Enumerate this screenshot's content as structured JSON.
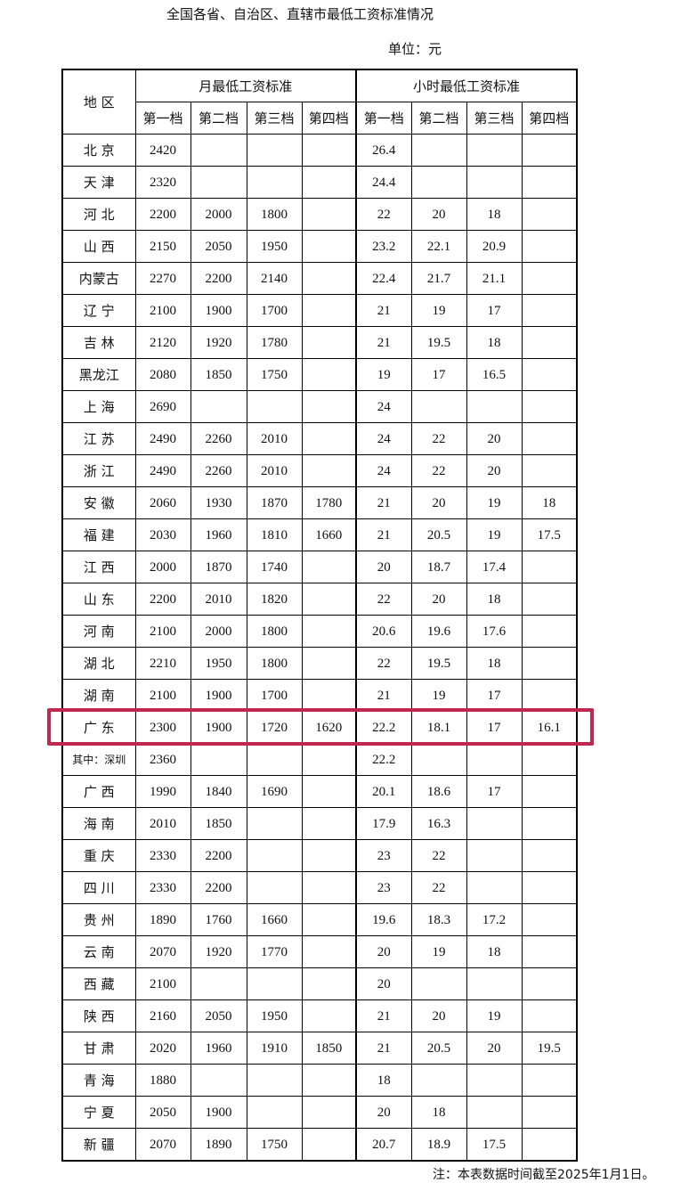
{
  "title": "全国各省、自治区、直辖市最低工资标准情况",
  "unit": "单位：元",
  "headers": {
    "region": "地 区",
    "monthly": "月最低工资标准",
    "hourly": "小时最低工资标准",
    "tiers": [
      "第一档",
      "第二档",
      "第三档",
      "第四档"
    ]
  },
  "highlight_color": "#c0284f",
  "highlighted_region": "广 东",
  "rows": [
    [
      "北 京",
      "2420",
      "",
      "",
      "",
      "26.4",
      "",
      "",
      ""
    ],
    [
      "天 津",
      "2320",
      "",
      "",
      "",
      "24.4",
      "",
      "",
      ""
    ],
    [
      "河 北",
      "2200",
      "2000",
      "1800",
      "",
      "22",
      "20",
      "18",
      ""
    ],
    [
      "山 西",
      "2150",
      "2050",
      "1950",
      "",
      "23.2",
      "22.1",
      "20.9",
      ""
    ],
    [
      "内蒙古",
      "2270",
      "2200",
      "2140",
      "",
      "22.4",
      "21.7",
      "21.1",
      ""
    ],
    [
      "辽 宁",
      "2100",
      "1900",
      "1700",
      "",
      "21",
      "19",
      "17",
      ""
    ],
    [
      "吉 林",
      "2120",
      "1920",
      "1780",
      "",
      "21",
      "19.5",
      "18",
      ""
    ],
    [
      "黑龙江",
      "2080",
      "1850",
      "1750",
      "",
      "19",
      "17",
      "16.5",
      ""
    ],
    [
      "上 海",
      "2690",
      "",
      "",
      "",
      "24",
      "",
      "",
      ""
    ],
    [
      "江 苏",
      "2490",
      "2260",
      "2010",
      "",
      "24",
      "22",
      "20",
      ""
    ],
    [
      "浙 江",
      "2490",
      "2260",
      "2010",
      "",
      "24",
      "22",
      "20",
      ""
    ],
    [
      "安 徽",
      "2060",
      "1930",
      "1870",
      "1780",
      "21",
      "20",
      "19",
      "18"
    ],
    [
      "福 建",
      "2030",
      "1960",
      "1810",
      "1660",
      "21",
      "20.5",
      "19",
      "17.5"
    ],
    [
      "江 西",
      "2000",
      "1870",
      "1740",
      "",
      "20",
      "18.7",
      "17.4",
      ""
    ],
    [
      "山 东",
      "2200",
      "2010",
      "1820",
      "",
      "22",
      "20",
      "18",
      ""
    ],
    [
      "河 南",
      "2100",
      "2000",
      "1800",
      "",
      "20.6",
      "19.6",
      "17.6",
      ""
    ],
    [
      "湖 北",
      "2210",
      "1950",
      "1800",
      "",
      "22",
      "19.5",
      "18",
      ""
    ],
    [
      "湖 南",
      "2100",
      "1900",
      "1700",
      "",
      "21",
      "19",
      "17",
      ""
    ],
    [
      "广 东",
      "2300",
      "1900",
      "1720",
      "1620",
      "22.2",
      "18.1",
      "17",
      "16.1"
    ],
    [
      "其中：深圳",
      "2360",
      "",
      "",
      "",
      "22.2",
      "",
      "",
      ""
    ],
    [
      "广 西",
      "1990",
      "1840",
      "1690",
      "",
      "20.1",
      "18.6",
      "17",
      ""
    ],
    [
      "海 南",
      "2010",
      "1850",
      "",
      "",
      "17.9",
      "16.3",
      "",
      ""
    ],
    [
      "重 庆",
      "2330",
      "2200",
      "",
      "",
      "23",
      "22",
      "",
      ""
    ],
    [
      "四 川",
      "2330",
      "2200",
      "",
      "",
      "23",
      "22",
      "",
      ""
    ],
    [
      "贵 州",
      "1890",
      "1760",
      "1660",
      "",
      "19.6",
      "18.3",
      "17.2",
      ""
    ],
    [
      "云 南",
      "2070",
      "1920",
      "1770",
      "",
      "20",
      "19",
      "18",
      ""
    ],
    [
      "西 藏",
      "2100",
      "",
      "",
      "",
      "20",
      "",
      "",
      ""
    ],
    [
      "陕 西",
      "2160",
      "2050",
      "1950",
      "",
      "21",
      "20",
      "19",
      ""
    ],
    [
      "甘 肃",
      "2020",
      "1960",
      "1910",
      "1850",
      "21",
      "20.5",
      "20",
      "19.5"
    ],
    [
      "青 海",
      "1880",
      "",
      "",
      "",
      "18",
      "",
      "",
      ""
    ],
    [
      "宁 夏",
      "2050",
      "1900",
      "",
      "",
      "20",
      "18",
      "",
      ""
    ],
    [
      "新 疆",
      "2070",
      "1890",
      "1750",
      "",
      "20.7",
      "18.9",
      "17.5",
      ""
    ]
  ],
  "note": "注：本表数据时间截至2025年1月1日。"
}
